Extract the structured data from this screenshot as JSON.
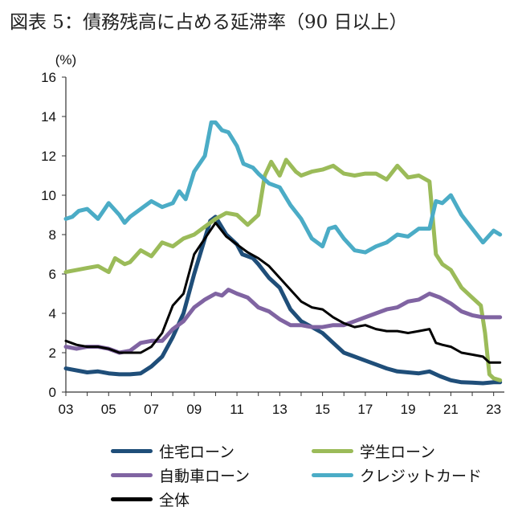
{
  "title": "図表 5：債務残高に占める延滞率（90 日以上）",
  "chart_data": {
    "type": "line",
    "title": "図表 5：債務残高に占める延滞率（90 日以上）",
    "ylabel": "(%)",
    "xlabel": "",
    "xlim": [
      2003,
      2023.5
    ],
    "ylim": [
      0,
      16
    ],
    "yticks": [
      0,
      2,
      4,
      6,
      8,
      10,
      12,
      14,
      16
    ],
    "xticks": [
      2003,
      2005,
      2007,
      2009,
      2011,
      2013,
      2015,
      2017,
      2019,
      2021,
      2023
    ],
    "xtick_labels": [
      "03",
      "05",
      "07",
      "09",
      "11",
      "13",
      "15",
      "17",
      "19",
      "21",
      "23"
    ],
    "grid": false,
    "legend": "bottom",
    "series": [
      {
        "name": "住宅ローン",
        "color": "#1F4E79",
        "points": [
          [
            2003,
            1.2
          ],
          [
            2004,
            1.0
          ],
          [
            2004.5,
            1.05
          ],
          [
            2005,
            0.95
          ],
          [
            2005.5,
            0.9
          ],
          [
            2006,
            0.9
          ],
          [
            2006.5,
            0.95
          ],
          [
            2007,
            1.3
          ],
          [
            2007.5,
            1.8
          ],
          [
            2008,
            2.8
          ],
          [
            2008.5,
            4.0
          ],
          [
            2009,
            6.0
          ],
          [
            2009.5,
            7.8
          ],
          [
            2009.75,
            8.7
          ],
          [
            2010,
            8.9
          ],
          [
            2010.5,
            8.0
          ],
          [
            2011,
            7.5
          ],
          [
            2011.25,
            7.0
          ],
          [
            2011.75,
            6.8
          ],
          [
            2012,
            6.5
          ],
          [
            2012.5,
            5.8
          ],
          [
            2013,
            5.3
          ],
          [
            2013.5,
            4.2
          ],
          [
            2014,
            3.6
          ],
          [
            2014.5,
            3.3
          ],
          [
            2015,
            3.0
          ],
          [
            2015.5,
            2.5
          ],
          [
            2016,
            2.0
          ],
          [
            2016.5,
            1.8
          ],
          [
            2017,
            1.6
          ],
          [
            2017.5,
            1.4
          ],
          [
            2018,
            1.2
          ],
          [
            2018.5,
            1.05
          ],
          [
            2019,
            1.0
          ],
          [
            2019.5,
            0.95
          ],
          [
            2020,
            1.05
          ],
          [
            2020.5,
            0.8
          ],
          [
            2021,
            0.6
          ],
          [
            2021.5,
            0.5
          ],
          [
            2022,
            0.48
          ],
          [
            2022.5,
            0.45
          ],
          [
            2023,
            0.5
          ],
          [
            2023.3,
            0.5
          ]
        ]
      },
      {
        "name": "学生ローン",
        "color": "#9BBB59",
        "points": [
          [
            2003,
            6.1
          ],
          [
            2003.5,
            6.2
          ],
          [
            2004,
            6.3
          ],
          [
            2004.5,
            6.4
          ],
          [
            2005,
            6.1
          ],
          [
            2005.3,
            6.8
          ],
          [
            2005.75,
            6.5
          ],
          [
            2006,
            6.6
          ],
          [
            2006.5,
            7.2
          ],
          [
            2007,
            6.9
          ],
          [
            2007.5,
            7.6
          ],
          [
            2008,
            7.4
          ],
          [
            2008.5,
            7.8
          ],
          [
            2009,
            8.0
          ],
          [
            2009.5,
            8.4
          ],
          [
            2010,
            8.8
          ],
          [
            2010.5,
            9.1
          ],
          [
            2011,
            9.0
          ],
          [
            2011.5,
            8.5
          ],
          [
            2012,
            9.0
          ],
          [
            2012.3,
            11.0
          ],
          [
            2012.6,
            11.7
          ],
          [
            2013,
            11.0
          ],
          [
            2013.3,
            11.8
          ],
          [
            2013.75,
            11.2
          ],
          [
            2014,
            11.0
          ],
          [
            2014.5,
            11.2
          ],
          [
            2015,
            11.3
          ],
          [
            2015.5,
            11.5
          ],
          [
            2016,
            11.1
          ],
          [
            2016.5,
            11.0
          ],
          [
            2017,
            11.1
          ],
          [
            2017.5,
            11.1
          ],
          [
            2018,
            10.8
          ],
          [
            2018.5,
            11.5
          ],
          [
            2019,
            10.9
          ],
          [
            2019.5,
            11.0
          ],
          [
            2020,
            10.7
          ],
          [
            2020.3,
            7.0
          ],
          [
            2020.6,
            6.5
          ],
          [
            2021,
            6.2
          ],
          [
            2021.5,
            5.3
          ],
          [
            2022,
            4.8
          ],
          [
            2022.4,
            4.4
          ],
          [
            2022.6,
            3.0
          ],
          [
            2022.8,
            0.9
          ],
          [
            2023,
            0.7
          ],
          [
            2023.3,
            0.6
          ]
        ]
      },
      {
        "name": "自動車ローン",
        "color": "#8064A2",
        "points": [
          [
            2003,
            2.3
          ],
          [
            2003.5,
            2.2
          ],
          [
            2004,
            2.3
          ],
          [
            2004.5,
            2.3
          ],
          [
            2005,
            2.2
          ],
          [
            2005.5,
            2.0
          ],
          [
            2006,
            2.1
          ],
          [
            2006.5,
            2.5
          ],
          [
            2007,
            2.6
          ],
          [
            2007.5,
            2.6
          ],
          [
            2008,
            3.2
          ],
          [
            2008.5,
            3.6
          ],
          [
            2009,
            4.3
          ],
          [
            2009.5,
            4.7
          ],
          [
            2010,
            5.0
          ],
          [
            2010.3,
            4.9
          ],
          [
            2010.6,
            5.2
          ],
          [
            2011,
            5.0
          ],
          [
            2011.5,
            4.8
          ],
          [
            2012,
            4.3
          ],
          [
            2012.5,
            4.1
          ],
          [
            2013,
            3.7
          ],
          [
            2013.5,
            3.4
          ],
          [
            2014,
            3.4
          ],
          [
            2014.5,
            3.3
          ],
          [
            2015,
            3.3
          ],
          [
            2015.5,
            3.4
          ],
          [
            2016,
            3.4
          ],
          [
            2016.5,
            3.6
          ],
          [
            2017,
            3.8
          ],
          [
            2017.5,
            4.0
          ],
          [
            2018,
            4.2
          ],
          [
            2018.5,
            4.3
          ],
          [
            2019,
            4.6
          ],
          [
            2019.5,
            4.7
          ],
          [
            2020,
            5.0
          ],
          [
            2020.5,
            4.8
          ],
          [
            2021,
            4.5
          ],
          [
            2021.5,
            4.1
          ],
          [
            2022,
            3.9
          ],
          [
            2022.5,
            3.8
          ],
          [
            2023,
            3.8
          ],
          [
            2023.3,
            3.8
          ]
        ]
      },
      {
        "name": "クレジットカード",
        "color": "#4BACC6",
        "points": [
          [
            2003,
            8.8
          ],
          [
            2003.3,
            8.9
          ],
          [
            2003.6,
            9.2
          ],
          [
            2004,
            9.3
          ],
          [
            2004.5,
            8.8
          ],
          [
            2005,
            9.6
          ],
          [
            2005.5,
            9.0
          ],
          [
            2005.75,
            8.6
          ],
          [
            2006,
            8.9
          ],
          [
            2006.5,
            9.3
          ],
          [
            2007,
            9.7
          ],
          [
            2007.5,
            9.4
          ],
          [
            2008,
            9.6
          ],
          [
            2008.3,
            10.2
          ],
          [
            2008.6,
            9.8
          ],
          [
            2009,
            11.2
          ],
          [
            2009.5,
            12.0
          ],
          [
            2009.8,
            13.7
          ],
          [
            2010,
            13.7
          ],
          [
            2010.3,
            13.3
          ],
          [
            2010.6,
            13.2
          ],
          [
            2011,
            12.5
          ],
          [
            2011.3,
            11.6
          ],
          [
            2011.75,
            11.4
          ],
          [
            2012,
            11.1
          ],
          [
            2012.5,
            10.6
          ],
          [
            2013,
            10.4
          ],
          [
            2013.5,
            9.5
          ],
          [
            2014,
            8.8
          ],
          [
            2014.5,
            7.8
          ],
          [
            2015,
            7.4
          ],
          [
            2015.3,
            8.3
          ],
          [
            2015.6,
            8.4
          ],
          [
            2016,
            7.8
          ],
          [
            2016.5,
            7.2
          ],
          [
            2017,
            7.1
          ],
          [
            2017.5,
            7.4
          ],
          [
            2018,
            7.6
          ],
          [
            2018.5,
            8.0
          ],
          [
            2019,
            7.9
          ],
          [
            2019.5,
            8.3
          ],
          [
            2020,
            8.3
          ],
          [
            2020.3,
            9.7
          ],
          [
            2020.6,
            9.6
          ],
          [
            2021,
            10.0
          ],
          [
            2021.5,
            9.0
          ],
          [
            2022,
            8.3
          ],
          [
            2022.5,
            7.6
          ],
          [
            2023,
            8.2
          ],
          [
            2023.3,
            8.0
          ]
        ]
      },
      {
        "name": "全体",
        "color": "#000000",
        "points": [
          [
            2003,
            2.6
          ],
          [
            2003.5,
            2.4
          ],
          [
            2004,
            2.3
          ],
          [
            2004.5,
            2.3
          ],
          [
            2005,
            2.2
          ],
          [
            2005.5,
            2.0
          ],
          [
            2006,
            2.0
          ],
          [
            2006.5,
            2.0
          ],
          [
            2007,
            2.3
          ],
          [
            2007.5,
            3.0
          ],
          [
            2008,
            4.4
          ],
          [
            2008.5,
            5.0
          ],
          [
            2009,
            7.0
          ],
          [
            2009.5,
            7.8
          ],
          [
            2010,
            8.6
          ],
          [
            2010.5,
            7.9
          ],
          [
            2011,
            7.5
          ],
          [
            2011.5,
            7.1
          ],
          [
            2012,
            6.8
          ],
          [
            2012.5,
            6.4
          ],
          [
            2013,
            5.8
          ],
          [
            2013.5,
            5.2
          ],
          [
            2014,
            4.6
          ],
          [
            2014.5,
            4.3
          ],
          [
            2015,
            4.2
          ],
          [
            2015.5,
            3.8
          ],
          [
            2016,
            3.5
          ],
          [
            2016.5,
            3.3
          ],
          [
            2017,
            3.4
          ],
          [
            2017.5,
            3.2
          ],
          [
            2018,
            3.1
          ],
          [
            2018.5,
            3.1
          ],
          [
            2019,
            3.0
          ],
          [
            2019.5,
            3.1
          ],
          [
            2020,
            3.2
          ],
          [
            2020.3,
            2.5
          ],
          [
            2020.6,
            2.4
          ],
          [
            2021,
            2.3
          ],
          [
            2021.5,
            2.0
          ],
          [
            2022,
            1.9
          ],
          [
            2022.5,
            1.8
          ],
          [
            2022.8,
            1.5
          ],
          [
            2023,
            1.5
          ],
          [
            2023.3,
            1.5
          ]
        ]
      }
    ]
  }
}
